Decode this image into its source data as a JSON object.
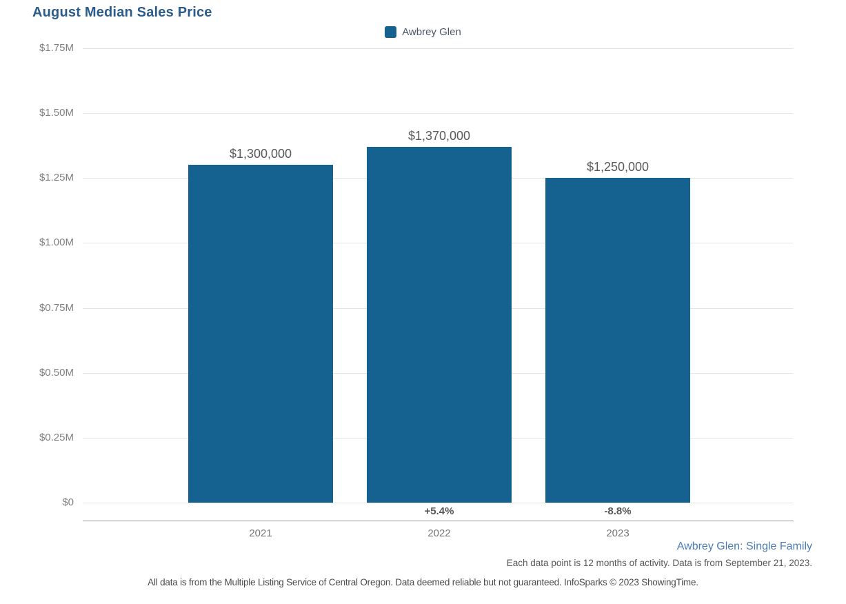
{
  "title": "August Median Sales Price",
  "legend": {
    "label": "Awbrey Glen"
  },
  "colors": {
    "title": "#2b5c8a",
    "bar": "#15618f",
    "link": "#4a7db5",
    "gridline": "#e4e4e4",
    "axis_line": "#9a9a9a"
  },
  "chart_data": {
    "type": "bar",
    "title": "August Median Sales Price",
    "categories": [
      "2021",
      "2022",
      "2023"
    ],
    "series": [
      {
        "name": "Awbrey Glen",
        "values": [
          1300000,
          1370000,
          1250000
        ]
      }
    ],
    "value_labels": [
      "$1,300,000",
      "$1,370,000",
      "$1,250,000"
    ],
    "pct_change_labels": [
      "",
      "+5.4%",
      "-8.8%"
    ],
    "y_ticks": [
      {
        "label": "$1.75M",
        "value": 1750000
      },
      {
        "label": "$1.50M",
        "value": 1500000
      },
      {
        "label": "$1.25M",
        "value": 1250000
      },
      {
        "label": "$1.00M",
        "value": 1000000
      },
      {
        "label": "$0.75M",
        "value": 750000
      },
      {
        "label": "$0.50M",
        "value": 500000
      },
      {
        "label": "$0.25M",
        "value": 250000
      },
      {
        "label": "$0",
        "value": 0
      }
    ],
    "ylim": [
      0,
      1750000
    ],
    "xlabel": "",
    "ylabel": "",
    "grid": true,
    "bar_color": "#15618f",
    "legend_position": "top-center"
  },
  "footer": {
    "series_note": "Awbrey Glen: Single Family",
    "data_note": "Each data point is 12 months of activity. Data is from September 21, 2023.",
    "disclaimer": "All data is from the Multiple Listing Service of Central Oregon. Data deemed reliable but not guaranteed. InfoSparks © 2023 ShowingTime."
  }
}
